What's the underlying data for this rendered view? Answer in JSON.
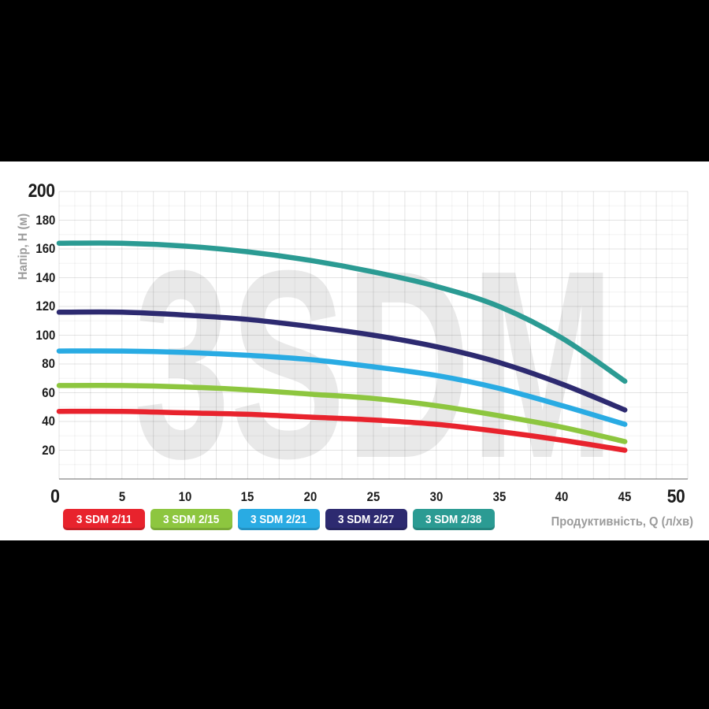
{
  "watermark": {
    "text": "3SDM",
    "color": "#e9e9e9"
  },
  "axes": {
    "y_title": "Напір, H (м)",
    "x_title": "Продуктивність, Q (л/хв)",
    "origin_label": "0",
    "title_color": "#9b9b9b"
  },
  "chart_data": {
    "type": "line",
    "x": [
      0,
      5,
      10,
      15,
      20,
      25,
      30,
      35,
      40,
      45
    ],
    "series": [
      {
        "name": "3 SDM 2/11",
        "color": "#e8232d",
        "values": [
          47,
          47,
          46,
          45,
          43,
          41,
          38,
          33,
          27,
          20
        ]
      },
      {
        "name": "3 SDM 2/15",
        "color": "#8dc63f",
        "values": [
          65,
          65,
          64,
          62,
          59,
          56,
          51,
          44,
          36,
          26
        ]
      },
      {
        "name": "3 SDM 2/21",
        "color": "#29abe3",
        "values": [
          89,
          89,
          88,
          86,
          83,
          78,
          72,
          63,
          51,
          38
        ]
      },
      {
        "name": "3 SDM 2/27",
        "color": "#2d2a70",
        "values": [
          116,
          116,
          114,
          111,
          106,
          100,
          92,
          81,
          66,
          48
        ]
      },
      {
        "name": "3 SDM 2/38",
        "color": "#2b9b93",
        "values": [
          164,
          164,
          162,
          158,
          152,
          144,
          134,
          120,
          98,
          68
        ]
      }
    ],
    "xlim": [
      0,
      50
    ],
    "ylim": [
      0,
      200
    ],
    "x_ticks": [
      5,
      10,
      15,
      20,
      25,
      30,
      35,
      40,
      45,
      50
    ],
    "y_ticks": [
      20,
      40,
      60,
      80,
      100,
      120,
      140,
      160,
      180,
      200
    ],
    "emphasis_x_ticks": [
      50
    ],
    "emphasis_y_ticks": [
      200
    ],
    "xlabel": "Продуктивність, Q (л/хв)",
    "ylabel": "Напір, H (м)",
    "grid": true,
    "legend_position": "bottom"
  }
}
